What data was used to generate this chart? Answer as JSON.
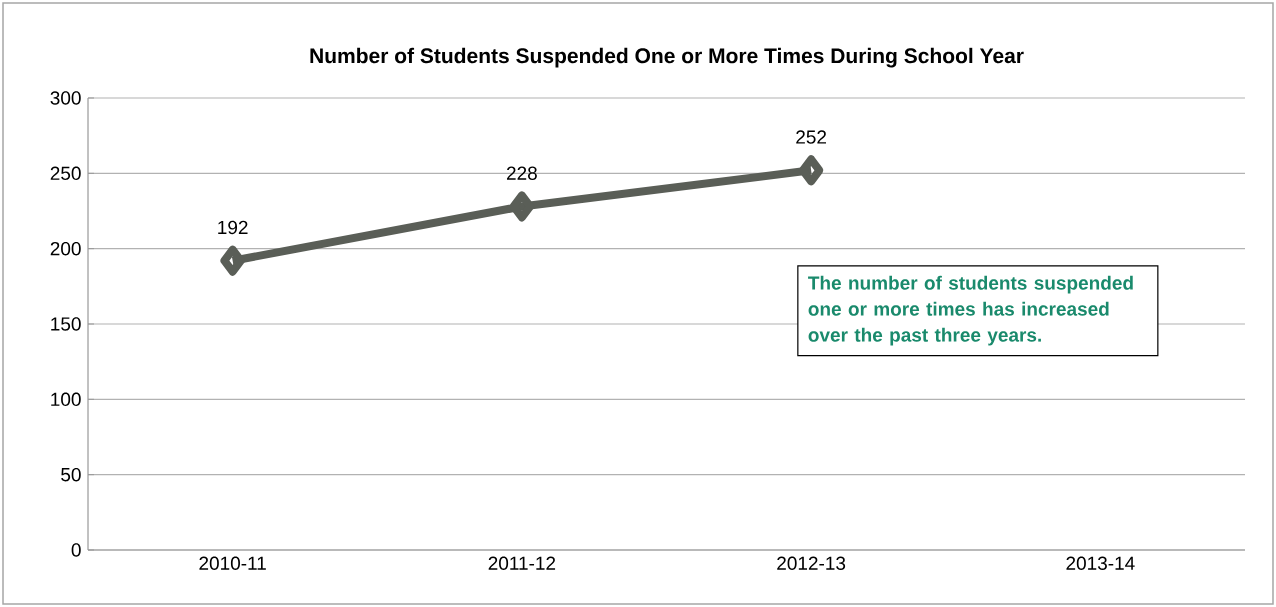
{
  "chart_data": {
    "type": "line",
    "title": "Number of Students Suspended One or More Times During School Year",
    "categories": [
      "2010-11",
      "2011-12",
      "2012-13",
      "2013-14"
    ],
    "values": [
      192,
      228,
      252,
      null
    ],
    "color": "#5a5e57",
    "marker": "diamond",
    "line_style": "solid",
    "ylim": [
      0,
      300
    ],
    "yticks": [
      0,
      50,
      100,
      150,
      200,
      250,
      300
    ],
    "grid": "y",
    "data_labels": true,
    "annotations": [
      "The number of students suspended one or more times has increased over the past three years."
    ]
  }
}
